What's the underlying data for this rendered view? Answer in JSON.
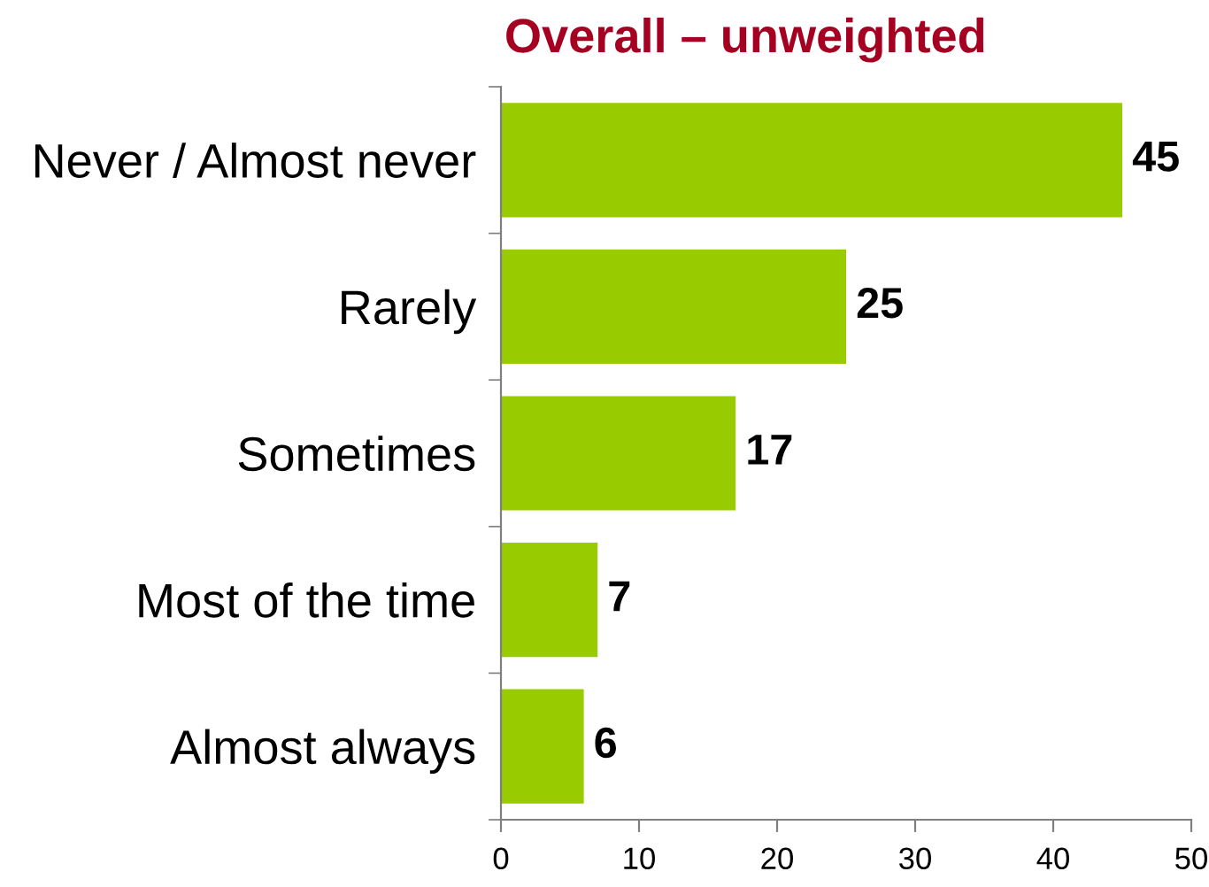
{
  "chart_data": {
    "type": "bar",
    "orientation": "horizontal",
    "title": "Overall – unweighted",
    "categories": [
      "Never / Almost never",
      "Rarely",
      "Sometimes",
      "Most of the time",
      "Almost always"
    ],
    "values": [
      45,
      25,
      17,
      7,
      6
    ],
    "color": "#99cc00",
    "xlim": [
      0,
      50
    ],
    "xticks": [
      0,
      10,
      20,
      30,
      40,
      50
    ],
    "grid": false,
    "legend": false,
    "data_labels": true
  }
}
